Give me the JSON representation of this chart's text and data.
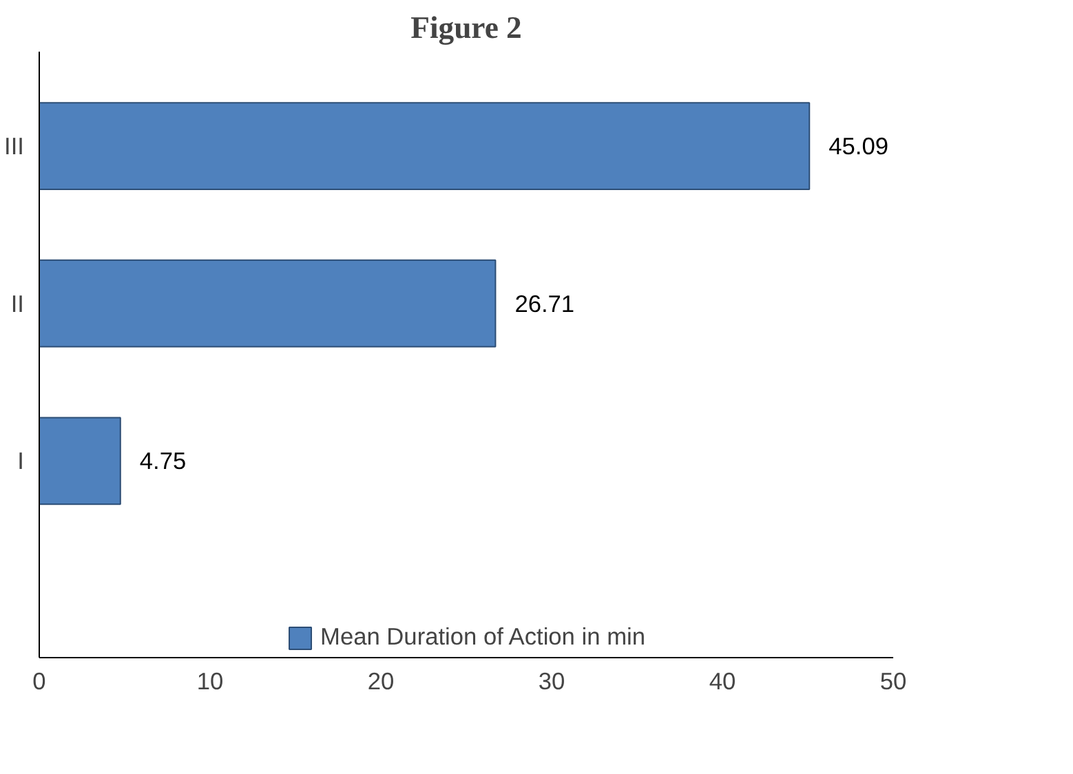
{
  "chart_data": {
    "type": "bar",
    "orientation": "horizontal",
    "title": "Figure 2",
    "categories": [
      "III",
      "II",
      "I"
    ],
    "series": [
      {
        "name": "Mean Duration of Action in min",
        "color": "#4f81bd",
        "values": [
          45.09,
          26.71,
          4.75
        ]
      }
    ],
    "xlim": [
      0,
      50
    ],
    "xticks": [
      0,
      10,
      20,
      30,
      40,
      50
    ],
    "data_labels": true,
    "legend": "bottom",
    "grid": false
  }
}
